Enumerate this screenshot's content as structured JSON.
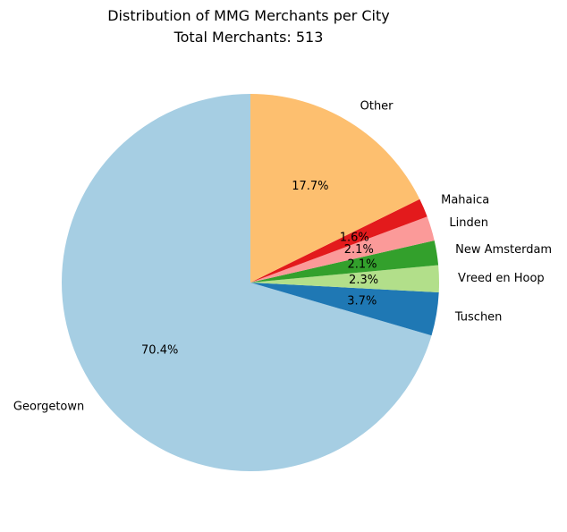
{
  "chart_data": {
    "type": "pie",
    "title": "Distribution of MMG Merchants per City",
    "subtitle": "Total Merchants: 513",
    "slices": [
      {
        "label": "Georgetown",
        "value": 70.4,
        "pct_label": "70.4%",
        "color": "#a6cee3"
      },
      {
        "label": "Tuschen",
        "value": 3.7,
        "pct_label": "3.7%",
        "color": "#1f78b4"
      },
      {
        "label": "Vreed en Hoop",
        "value": 2.3,
        "pct_label": "2.3%",
        "color": "#b2df8a"
      },
      {
        "label": "New Amsterdam",
        "value": 2.1,
        "pct_label": "2.1%",
        "color": "#33a02c"
      },
      {
        "label": "Linden",
        "value": 2.1,
        "pct_label": "2.1%",
        "color": "#fb9a99"
      },
      {
        "label": "Mahaica",
        "value": 1.6,
        "pct_label": "1.6%",
        "color": "#e31a1c"
      },
      {
        "label": "Other",
        "value": 17.7,
        "pct_label": "17.7%",
        "color": "#fdbf6f"
      }
    ],
    "start_angle_deg": 90,
    "direction": "counterclockwise"
  }
}
